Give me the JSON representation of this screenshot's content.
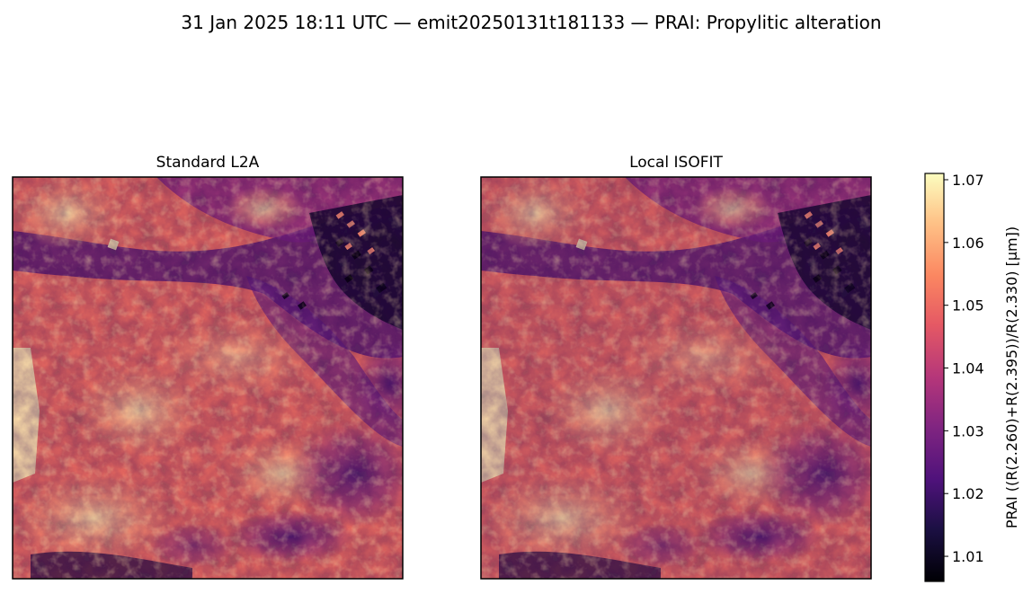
{
  "figure": {
    "suptitle": "31 Jan 2025 18:11 UTC — emit20250131t181133 — PRAI: Propylitic alteration"
  },
  "chart_data": [
    {
      "type": "heatmap",
      "title": "Standard L2A",
      "colormap": "magma",
      "value_range": [
        1.006,
        1.071
      ],
      "colorbar_label": "PRAI  ((R(2.260)+R(2.395))/R(2.330)  [µm])",
      "colorbar_ticks": [
        "1.01",
        "1.02",
        "1.03",
        "1.04",
        "1.05",
        "1.06",
        "1.07"
      ],
      "colorbar_tick_values": [
        1.01,
        1.02,
        1.03,
        1.04,
        1.05,
        1.06,
        1.07
      ],
      "axes_ticks": false
    },
    {
      "type": "heatmap",
      "title": "Local ISOFIT",
      "colormap": "magma",
      "value_range": [
        1.006,
        1.071
      ],
      "axes_ticks": false
    }
  ]
}
